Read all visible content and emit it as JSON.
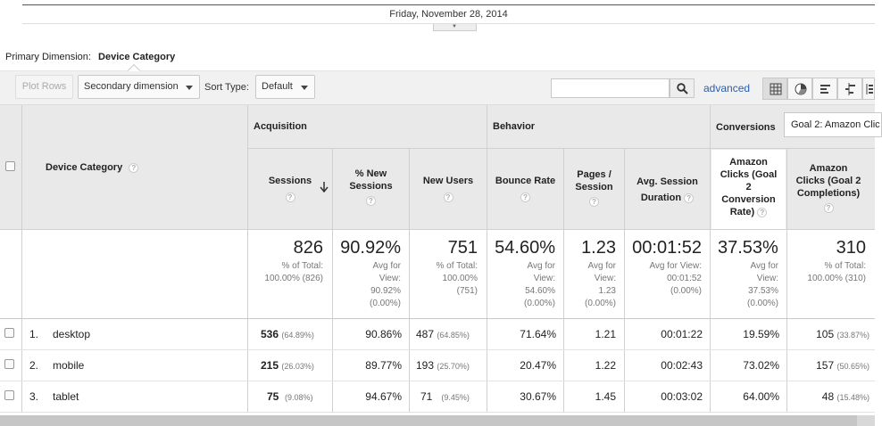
{
  "timeline": {
    "date": "Friday, November 28, 2014"
  },
  "primary_dimension": {
    "label": "Primary Dimension:",
    "value": "Device Category"
  },
  "toolbar": {
    "plot_rows": "Plot Rows",
    "secondary_dimension": "Secondary dimension",
    "sort_type_label": "Sort Type:",
    "sort_type_value": "Default",
    "search_value": "",
    "advanced": "advanced"
  },
  "table": {
    "groups": {
      "acquisition": "Acquisition",
      "behavior": "Behavior",
      "conversions": "Conversions",
      "goal_select": "Goal 2: Amazon Clic"
    },
    "dimension_header": "Device Category",
    "columns": {
      "sessions": "Sessions",
      "new_sessions_1": "% New",
      "new_sessions_2": "Sessions",
      "new_users": "New Users",
      "bounce_rate": "Bounce Rate",
      "pages_1": "Pages /",
      "pages_2": "Session",
      "avg_dur_1": "Avg. Session",
      "avg_dur_2": "Duration",
      "conv_rate_1": "Amazon",
      "conv_rate_2": "Clicks (Goal",
      "conv_rate_3": "2",
      "conv_rate_4": "Conversion",
      "conv_rate_5": "Rate)",
      "completions_1": "Amazon",
      "completions_2": "Clicks (Goal 2",
      "completions_3": "Completions)"
    },
    "totals": {
      "sessions": "826",
      "sessions_s1": "% of Total:",
      "sessions_s2": "100.00% (826)",
      "new_sessions": "90.92%",
      "new_sessions_s1": "Avg for",
      "new_sessions_s2": "View:",
      "new_sessions_s3": "90.92%",
      "new_sessions_s4": "(0.00%)",
      "new_users": "751",
      "new_users_s1": "% of Total:",
      "new_users_s2": "100.00%",
      "new_users_s3": "(751)",
      "bounce_rate": "54.60%",
      "bounce_rate_s1": "Avg for",
      "bounce_rate_s2": "View:",
      "bounce_rate_s3": "54.60%",
      "bounce_rate_s4": "(0.00%)",
      "pages": "1.23",
      "pages_s1": "Avg for",
      "pages_s2": "View:",
      "pages_s3": "1.23",
      "pages_s4": "(0.00%)",
      "avg_dur": "00:01:52",
      "avg_dur_s1": "Avg for View:",
      "avg_dur_s2": "00:01:52",
      "avg_dur_s3": "(0.00%)",
      "conv_rate": "37.53%",
      "conv_rate_s1": "Avg for",
      "conv_rate_s2": "View:",
      "conv_rate_s3": "37.53%",
      "conv_rate_s4": "(0.00%)",
      "completions": "310",
      "completions_s1": "% of Total:",
      "completions_s2": "100.00% (310)"
    },
    "rows": [
      {
        "idx": "1.",
        "name": "desktop",
        "sessions": "536",
        "sessions_pct": "(64.89%)",
        "new_sessions": "90.86%",
        "new_users": "487",
        "new_users_pct": "(64.85%)",
        "bounce_rate": "71.64%",
        "pages": "1.21",
        "avg_dur": "00:01:22",
        "conv_rate": "19.59%",
        "completions": "105",
        "completions_pct": "(33.87%)"
      },
      {
        "idx": "2.",
        "name": "mobile",
        "sessions": "215",
        "sessions_pct": "(26.03%)",
        "new_sessions": "89.77%",
        "new_users": "193",
        "new_users_pct": "(25.70%)",
        "bounce_rate": "20.47%",
        "pages": "1.22",
        "avg_dur": "00:02:43",
        "conv_rate": "73.02%",
        "completions": "157",
        "completions_pct": "(50.65%)"
      },
      {
        "idx": "3.",
        "name": "tablet",
        "sessions": "75",
        "sessions_pct": "(9.08%)",
        "new_sessions": "94.67%",
        "new_users": "71",
        "new_users_pct": "(9.45%)",
        "bounce_rate": "30.67%",
        "pages": "1.45",
        "avg_dur": "00:03:02",
        "conv_rate": "64.00%",
        "completions": "48",
        "completions_pct": "(15.48%)"
      }
    ]
  },
  "colors": {
    "link": "#2a5db0",
    "header_bg": "#e9e9e9",
    "toolbar_bg": "#f1f1f1"
  },
  "icons": [
    "search-icon",
    "table-view-icon",
    "pie-view-icon",
    "performance-view-icon",
    "comparison-view-icon",
    "pivot-view-icon",
    "sort-down-arrow-icon",
    "help-icon",
    "caret-down-icon"
  ]
}
